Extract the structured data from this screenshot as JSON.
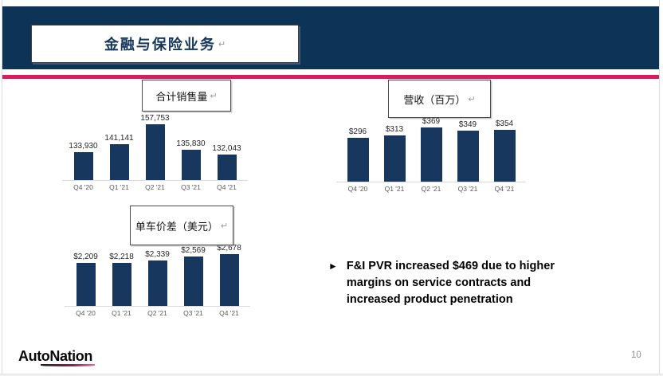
{
  "slide": {
    "header": {
      "title": "金融与保险业务"
    },
    "return_mark": "↵",
    "bullet": {
      "marker": "►",
      "text": "F&I PVR increased $469 due to higher margins on service contracts and increased product penetration"
    },
    "footer": {
      "logo_text": "AutoNation",
      "page_number": "10"
    },
    "colors": {
      "navy_header": "#0d3356",
      "bar_fill": "#17375e",
      "accent_pink": "#d91c5c",
      "axis_line": "#d9d9d9",
      "category_text": "#595959",
      "value_label_text": "#262626"
    }
  },
  "chart_data": [
    {
      "type": "bar",
      "title": "合计销售量",
      "categories": [
        "Q4 '20",
        "Q1 '21",
        "Q2 '21",
        "Q3 '21",
        "Q4 '21"
      ],
      "values": [
        133930,
        141141,
        157753,
        135830,
        132043
      ],
      "value_labels": [
        "133,930",
        "141,141",
        "157,753",
        "135,830",
        "132,043"
      ],
      "ylim": [
        110000,
        158000
      ],
      "grid": false,
      "legend": false
    },
    {
      "type": "bar",
      "title": "营收（百万）",
      "categories": [
        "Q4 '20",
        "Q1 '21",
        "Q2 '21",
        "Q3 '21",
        "Q4 '21"
      ],
      "values": [
        296,
        313,
        369,
        349,
        354
      ],
      "value_labels": [
        "$296",
        "$313",
        "$369",
        "$349",
        "$354"
      ],
      "ylim": [
        0,
        380
      ],
      "grid": false,
      "legend": false
    },
    {
      "type": "bar",
      "title": "单车价差（美元）",
      "categories": [
        "Q4 '20",
        "Q1 '21",
        "Q2 '21",
        "Q3 '21",
        "Q4 '21"
      ],
      "values": [
        2209,
        2218,
        2339,
        2569,
        2678
      ],
      "value_labels": [
        "$2,209",
        "$2,218",
        "$2,339",
        "$2,569",
        "$2,678"
      ],
      "ylim": [
        0,
        2800
      ],
      "grid": false,
      "legend": false
    }
  ]
}
